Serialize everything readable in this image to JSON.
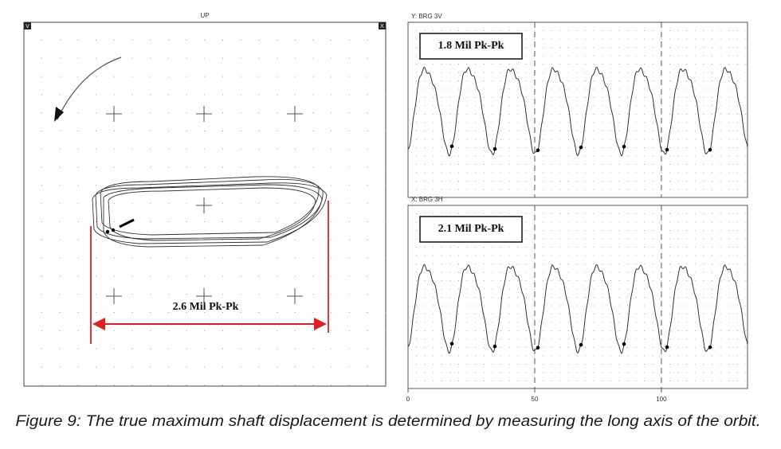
{
  "orbit_plot": {
    "title": "UP",
    "left_corner": "V",
    "right_corner": "X",
    "annotation": "2.6 Mil Pk-Pk"
  },
  "waveforms": [
    {
      "label": "Y: BRG 3V",
      "annotation": "1.8 Mil Pk-Pk"
    },
    {
      "label": "X: BRG 3H",
      "annotation": "2.1 Mil Pk-Pk"
    }
  ],
  "time_axis": {
    "xlim": [
      0,
      134
    ],
    "xticks": [
      0,
      50,
      100
    ]
  },
  "caption": "Figure 9: The true maximum shaft displacement is determined by measuring the long axis of the orbit."
}
